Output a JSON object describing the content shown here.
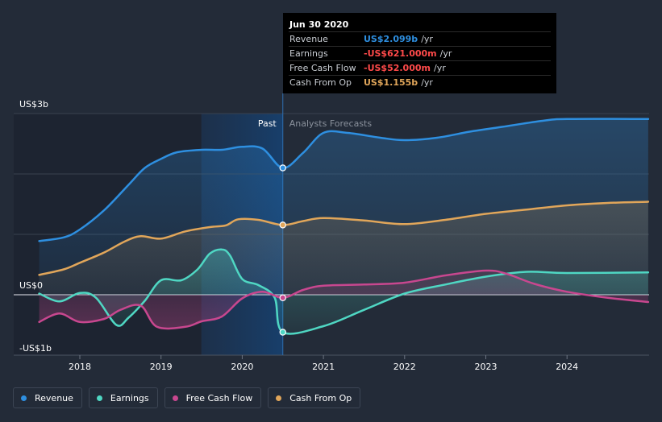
{
  "chart_data": {
    "type": "line",
    "y_axis": {
      "top_label": "US$3b",
      "zero_label": "US$0",
      "bottom_label": "-US$1b",
      "ylim": [
        -1.0,
        3.0
      ]
    },
    "x_ticks": [
      {
        "label": "2018",
        "x": 2018.0
      },
      {
        "label": "2019",
        "x": 2019.0
      },
      {
        "label": "2020",
        "x": 2020.0
      },
      {
        "label": "2021",
        "x": 2021.0
      },
      {
        "label": "2022",
        "x": 2022.0
      },
      {
        "label": "2023",
        "x": 2023.0
      },
      {
        "label": "2024",
        "x": 2024.0
      }
    ],
    "xlim": [
      2017.3,
      2025.0
    ],
    "divider_x": 2020.5,
    "past_label": "Past",
    "forecast_label": "Analysts Forecasts",
    "series": [
      {
        "name": "Revenue",
        "color": "#2e8fe0",
        "points": [
          [
            2017.5,
            0.89
          ],
          [
            2017.8,
            0.95
          ],
          [
            2018.0,
            1.08
          ],
          [
            2018.3,
            1.4
          ],
          [
            2018.6,
            1.82
          ],
          [
            2018.8,
            2.1
          ],
          [
            2019.0,
            2.25
          ],
          [
            2019.2,
            2.36
          ],
          [
            2019.5,
            2.4
          ],
          [
            2019.75,
            2.4
          ],
          [
            2020.0,
            2.45
          ],
          [
            2020.25,
            2.42
          ],
          [
            2020.5,
            2.1
          ],
          [
            2020.75,
            2.35
          ],
          [
            2021.0,
            2.68
          ],
          [
            2021.3,
            2.68
          ],
          [
            2021.7,
            2.6
          ],
          [
            2022.0,
            2.56
          ],
          [
            2022.4,
            2.6
          ],
          [
            2022.8,
            2.7
          ],
          [
            2023.2,
            2.78
          ],
          [
            2023.7,
            2.88
          ],
          [
            2024.0,
            2.91
          ],
          [
            2025.0,
            2.91
          ]
        ]
      },
      {
        "name": "Earnings",
        "color": "#4fd7c3",
        "points": [
          [
            2017.5,
            0.02
          ],
          [
            2017.75,
            -0.11
          ],
          [
            2018.0,
            0.03
          ],
          [
            2018.2,
            -0.05
          ],
          [
            2018.45,
            -0.5
          ],
          [
            2018.6,
            -0.38
          ],
          [
            2018.8,
            -0.1
          ],
          [
            2019.0,
            0.24
          ],
          [
            2019.25,
            0.24
          ],
          [
            2019.45,
            0.42
          ],
          [
            2019.6,
            0.68
          ],
          [
            2019.75,
            0.75
          ],
          [
            2019.85,
            0.65
          ],
          [
            2020.0,
            0.26
          ],
          [
            2020.2,
            0.16
          ],
          [
            2020.4,
            -0.05
          ],
          [
            2020.5,
            -0.62
          ],
          [
            2021.0,
            -0.52
          ],
          [
            2021.5,
            -0.25
          ],
          [
            2022.0,
            0.02
          ],
          [
            2022.5,
            0.17
          ],
          [
            2023.0,
            0.3
          ],
          [
            2023.5,
            0.38
          ],
          [
            2024.0,
            0.36
          ],
          [
            2025.0,
            0.37
          ]
        ]
      },
      {
        "name": "Free Cash Flow",
        "color": "#c8478f",
        "points": [
          [
            2017.5,
            -0.45
          ],
          [
            2017.75,
            -0.31
          ],
          [
            2018.0,
            -0.45
          ],
          [
            2018.3,
            -0.4
          ],
          [
            2018.5,
            -0.25
          ],
          [
            2018.75,
            -0.18
          ],
          [
            2018.95,
            -0.53
          ],
          [
            2019.3,
            -0.53
          ],
          [
            2019.5,
            -0.44
          ],
          [
            2019.75,
            -0.36
          ],
          [
            2020.0,
            -0.06
          ],
          [
            2020.25,
            0.05
          ],
          [
            2020.5,
            -0.05
          ],
          [
            2020.75,
            0.08
          ],
          [
            2021.0,
            0.15
          ],
          [
            2021.5,
            0.17
          ],
          [
            2022.0,
            0.2
          ],
          [
            2022.5,
            0.32
          ],
          [
            2023.0,
            0.4
          ],
          [
            2023.25,
            0.35
          ],
          [
            2023.6,
            0.18
          ],
          [
            2024.0,
            0.05
          ],
          [
            2024.5,
            -0.05
          ],
          [
            2025.0,
            -0.12
          ]
        ]
      },
      {
        "name": "Cash From Op",
        "color": "#e1a65a",
        "points": [
          [
            2017.5,
            0.33
          ],
          [
            2017.8,
            0.42
          ],
          [
            2018.0,
            0.53
          ],
          [
            2018.3,
            0.7
          ],
          [
            2018.55,
            0.88
          ],
          [
            2018.75,
            0.97
          ],
          [
            2019.0,
            0.93
          ],
          [
            2019.3,
            1.05
          ],
          [
            2019.6,
            1.12
          ],
          [
            2019.8,
            1.15
          ],
          [
            2019.95,
            1.25
          ],
          [
            2020.2,
            1.24
          ],
          [
            2020.5,
            1.155
          ],
          [
            2020.75,
            1.22
          ],
          [
            2021.0,
            1.27
          ],
          [
            2021.5,
            1.23
          ],
          [
            2022.0,
            1.17
          ],
          [
            2022.5,
            1.24
          ],
          [
            2023.0,
            1.34
          ],
          [
            2023.5,
            1.41
          ],
          [
            2024.0,
            1.48
          ],
          [
            2024.5,
            1.52
          ],
          [
            2025.0,
            1.54
          ]
        ]
      }
    ],
    "tooltip": {
      "date": "Jun 30 2020",
      "rows": [
        {
          "label": "Revenue",
          "value": "US$2.099b",
          "unit": "/yr",
          "color": "#2e8fe0"
        },
        {
          "label": "Earnings",
          "value": "-US$621.000m",
          "unit": "/yr",
          "color": "#ff4a4a"
        },
        {
          "label": "Free Cash Flow",
          "value": "-US$52.000m",
          "unit": "/yr",
          "color": "#ff4a4a"
        },
        {
          "label": "Cash From Op",
          "value": "US$1.155b",
          "unit": "/yr",
          "color": "#e1a65a"
        }
      ]
    }
  },
  "legend": [
    {
      "label": "Revenue",
      "color": "#2e8fe0"
    },
    {
      "label": "Earnings",
      "color": "#4fd7c3"
    },
    {
      "label": "Free Cash Flow",
      "color": "#c8478f"
    },
    {
      "label": "Cash From Op",
      "color": "#e1a65a"
    }
  ]
}
